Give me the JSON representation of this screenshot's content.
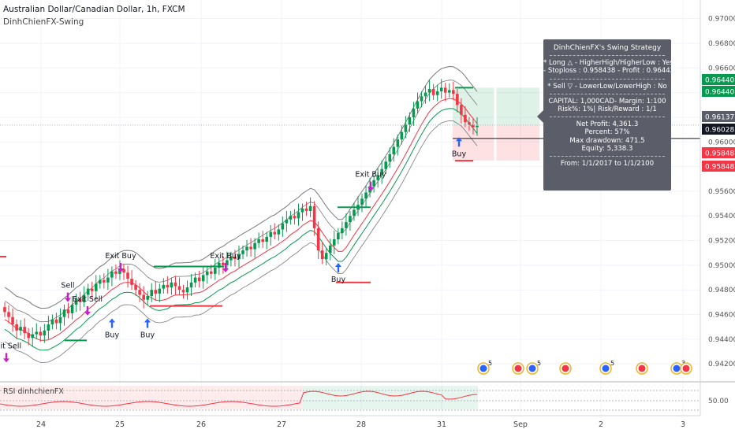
{
  "header": {
    "symbol_title": "Australian Dollar/Canadian Dollar, 1h, FXCM",
    "indicator_name": "DinhChienFX-Swing"
  },
  "rsi_pane": {
    "title": "RSI dinhchienFX",
    "level_label": "50.00"
  },
  "info_box": {
    "title": "DinhChienFX's Swing Strategy",
    "long_line": "* Long  △  - HigherHigh/HigherLow : Yes",
    "long_detail": "- Stoploss : 0.958438 - Profit : 0.964422",
    "sell_line": "* Sell  ▽  - LowerLow/LowerHigh : No",
    "capital_line": "CAPITAL: 1,000CAD- Margin: 1:100",
    "risk_line": "Risk%: 1%| Risk/Reward : 1/1",
    "net_profit": "Net Profit: 4,361.3",
    "percent": "Percent: 57%",
    "max_drawdown": "Max drawdown: 471.5",
    "equity": "Equity: 5,338.3",
    "range": "From: 1/1/2017 to 1/1/2100"
  },
  "price_badges": [
    {
      "label": "0.96440",
      "color": "#089950"
    },
    {
      "label": "0.96440",
      "color": "#089950"
    },
    {
      "label": "0.96137",
      "color": "#5b5e69"
    },
    {
      "label": "0.96028",
      "color": "#131722"
    },
    {
      "label": "0.95848",
      "color": "#f23645"
    },
    {
      "label": "0.95848",
      "color": "#f23645"
    }
  ],
  "chart_data": {
    "type": "candlestick",
    "x_ticks": [
      "24",
      "25",
      "26",
      "27",
      "28",
      "31",
      "Sep",
      "2",
      "3"
    ],
    "y_ticks": [
      "0.97000",
      "0.96800",
      "0.96600",
      "0.96400",
      "0.96200",
      "0.96000",
      "0.95800",
      "0.95600",
      "0.95400",
      "0.95200",
      "0.95000",
      "0.94800",
      "0.94600",
      "0.94400",
      "0.94200"
    ],
    "ylim": [
      0.9415,
      0.971
    ],
    "closes": [
      0.9462,
      0.9458,
      0.9452,
      0.9447,
      0.945,
      0.9445,
      0.9441,
      0.9444,
      0.9446,
      0.9443,
      0.9447,
      0.9452,
      0.9456,
      0.9453,
      0.9458,
      0.9464,
      0.9461,
      0.9468,
      0.9473,
      0.947,
      0.9476,
      0.9481,
      0.9479,
      0.9485,
      0.9488,
      0.9486,
      0.949,
      0.9495,
      0.9493,
      0.9497,
      0.9494,
      0.9489,
      0.9484,
      0.948,
      0.9476,
      0.9472,
      0.9475,
      0.948,
      0.9477,
      0.9481,
      0.9484,
      0.9482,
      0.9486,
      0.9483,
      0.948,
      0.9478,
      0.9482,
      0.9486,
      0.949,
      0.9487,
      0.9492,
      0.9495,
      0.9493,
      0.9498,
      0.9502,
      0.95,
      0.9504,
      0.9507,
      0.9505,
      0.9509,
      0.9512,
      0.9515,
      0.9513,
      0.9518,
      0.9521,
      0.9519,
      0.9523,
      0.9527,
      0.9525,
      0.9529,
      0.9534,
      0.9537,
      0.954,
      0.9538,
      0.9543,
      0.9546,
      0.9544,
      0.9548,
      0.953,
      0.9512,
      0.9505,
      0.951,
      0.9516,
      0.9521,
      0.9526,
      0.953,
      0.9535,
      0.954,
      0.9545,
      0.9549,
      0.9554,
      0.9559,
      0.9564,
      0.9569,
      0.9573,
      0.9578,
      0.9584,
      0.959,
      0.9596,
      0.9602,
      0.9608,
      0.9614,
      0.962,
      0.9627,
      0.9633,
      0.9637,
      0.964,
      0.9643,
      0.9638,
      0.9641,
      0.9644,
      0.964,
      0.9642,
      0.9639,
      0.963,
      0.9622,
      0.9616,
      0.9614,
      0.9612,
      0.9613
    ],
    "series": [
      {
        "name": "upper band"
      },
      {
        "name": "middle band"
      },
      {
        "name": "lower band"
      }
    ],
    "signals": [
      {
        "label": "Exit Sell",
        "x_index": 1
      },
      {
        "label": "Sell",
        "x_index": 14
      },
      {
        "label": "Exit Sell",
        "x_index": 19
      },
      {
        "label": "Buy",
        "x_index": 24
      },
      {
        "label": "Exit Buy",
        "x_index": 26
      },
      {
        "label": "Buy",
        "x_index": 31
      },
      {
        "label": "Exit Buy",
        "x_index": 48
      },
      {
        "label": "Buy",
        "x_index": 71
      },
      {
        "label": "Exit Buy",
        "x_index": 80
      },
      {
        "label": "Buy",
        "x_index": 97
      }
    ],
    "event_badges": [
      "5",
      "5",
      "5",
      "3"
    ],
    "grid": true,
    "colors": {
      "up": "#089950",
      "down": "#f23645",
      "band_upper": "#7a7a7a",
      "band_mid": "#f23645",
      "band_lower": "#089950"
    }
  }
}
